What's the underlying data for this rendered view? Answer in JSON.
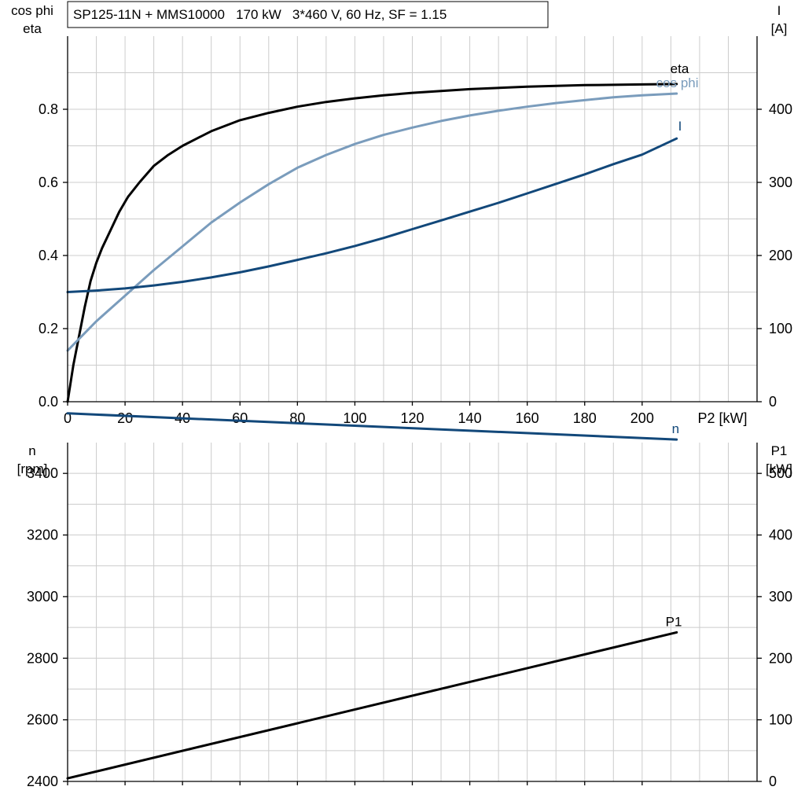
{
  "title": "SP125-11N + MMS10000   170 kW   3*460 V, 60 Hz, SF = 1.15",
  "colors": {
    "eta": "#000000",
    "cos_phi": "#7a9cbc",
    "I": "#12487a",
    "n": "#12487a",
    "P1": "#000000",
    "grid": "#cccccc",
    "axis": "#000000"
  },
  "chart_data": [
    {
      "type": "line",
      "panel": "top",
      "x_axis": {
        "label": "P2 [kW]",
        "range": [
          0,
          240
        ],
        "ticks": [
          0,
          20,
          40,
          60,
          80,
          100,
          120,
          140,
          160,
          180,
          200
        ]
      },
      "left_axis": {
        "label_lines": [
          "cos phi",
          "eta"
        ],
        "range": [
          0,
          1.0
        ],
        "ticks": [
          0.0,
          0.2,
          0.4,
          0.6,
          0.8
        ],
        "tick_labels": [
          "0.0",
          "0.2",
          "0.4",
          "0.6",
          "0.8"
        ]
      },
      "right_axis": {
        "label_lines": [
          "I",
          "[A]"
        ],
        "range": [
          0,
          500
        ],
        "ticks": [
          0,
          100,
          200,
          300,
          400
        ],
        "tick_labels": [
          "0",
          "100",
          "200",
          "300",
          "400"
        ]
      },
      "grid": true,
      "series": [
        {
          "name": "eta",
          "axis": "left",
          "color_key": "eta",
          "x": [
            0,
            2,
            4,
            6,
            8,
            10,
            12,
            15,
            18,
            21,
            25,
            30,
            35,
            40,
            45,
            50,
            60,
            70,
            80,
            90,
            100,
            110,
            120,
            140,
            160,
            180,
            200,
            212
          ],
          "y": [
            0.0,
            0.1,
            0.18,
            0.26,
            0.33,
            0.38,
            0.42,
            0.47,
            0.52,
            0.56,
            0.6,
            0.645,
            0.675,
            0.7,
            0.72,
            0.74,
            0.77,
            0.79,
            0.807,
            0.82,
            0.83,
            0.838,
            0.845,
            0.855,
            0.862,
            0.866,
            0.868,
            0.869
          ]
        },
        {
          "name": "cos phi",
          "axis": "left",
          "color_key": "cos_phi",
          "x": [
            0,
            10,
            20,
            30,
            40,
            50,
            60,
            70,
            80,
            90,
            100,
            110,
            120,
            130,
            140,
            150,
            160,
            170,
            180,
            190,
            200,
            212
          ],
          "y": [
            0.14,
            0.22,
            0.29,
            0.36,
            0.425,
            0.49,
            0.545,
            0.595,
            0.64,
            0.675,
            0.705,
            0.73,
            0.75,
            0.768,
            0.783,
            0.796,
            0.807,
            0.817,
            0.825,
            0.833,
            0.838,
            0.843
          ]
        },
        {
          "name": "I",
          "axis": "right",
          "color_key": "I",
          "x": [
            0,
            10,
            20,
            30,
            40,
            50,
            60,
            70,
            80,
            90,
            100,
            110,
            120,
            130,
            140,
            150,
            160,
            170,
            180,
            190,
            200,
            212
          ],
          "y": [
            150,
            152,
            155,
            159,
            164,
            170,
            177,
            185,
            194,
            203,
            213,
            224,
            236,
            248,
            260,
            272,
            285,
            298,
            311,
            325,
            338,
            360
          ]
        }
      ],
      "annotations": [
        "eta",
        "cos phi",
        "I"
      ]
    },
    {
      "type": "line",
      "panel": "bottom",
      "x_axis": {
        "label": "",
        "range": [
          0,
          240
        ],
        "ticks": [
          0,
          20,
          40,
          60,
          80,
          100,
          120,
          140,
          160,
          180,
          200
        ]
      },
      "left_axis": {
        "label_lines": [
          "n",
          "[rpm]"
        ],
        "range": [
          2400,
          3500
        ],
        "ticks": [
          2400,
          2600,
          2800,
          3000,
          3200,
          3400
        ],
        "tick_labels": [
          "2400",
          "2600",
          "2800",
          "3000",
          "3200",
          "3400"
        ]
      },
      "right_axis": {
        "label_lines": [
          "P1",
          "[kW]"
        ],
        "range": [
          0,
          550
        ],
        "ticks": [
          0,
          100,
          200,
          300,
          400,
          500
        ],
        "tick_labels": [
          "0",
          "100",
          "200",
          "300",
          "400",
          "500"
        ]
      },
      "grid": true,
      "series": [
        {
          "name": "n",
          "axis": "left",
          "color_key": "n",
          "x": [
            0,
            212
          ],
          "y": [
            3595,
            3510
          ]
        },
        {
          "name": "P1",
          "axis": "right",
          "color_key": "P1",
          "x": [
            0,
            212
          ],
          "y": [
            5,
            242
          ]
        }
      ],
      "annotations": [
        "n",
        "P1"
      ]
    }
  ]
}
